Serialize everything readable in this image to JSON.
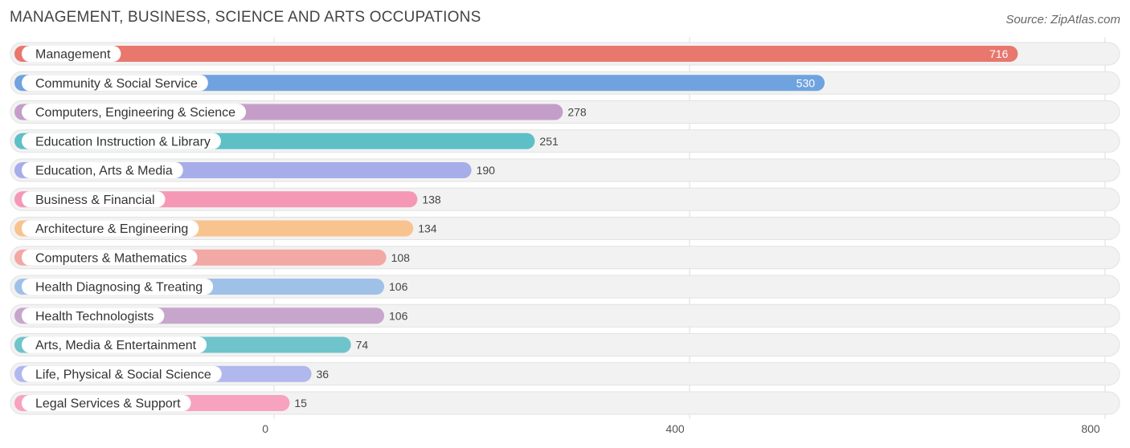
{
  "chart_data": {
    "type": "bar",
    "orientation": "horizontal",
    "title": "MANAGEMENT, BUSINESS, SCIENCE AND ARTS OCCUPATIONS",
    "source": "Source: ZipAtlas.com",
    "categories": [
      "Management",
      "Community & Social Service",
      "Computers, Engineering & Science",
      "Education Instruction & Library",
      "Education, Arts & Media",
      "Business & Financial",
      "Architecture & Engineering",
      "Computers & Mathematics",
      "Health Diagnosing & Treating",
      "Health Technologists",
      "Arts, Media & Entertainment",
      "Life, Physical & Social Science",
      "Legal Services & Support"
    ],
    "values": [
      716,
      530,
      278,
      251,
      190,
      138,
      134,
      108,
      106,
      106,
      74,
      36,
      15
    ],
    "value_labels": [
      "716",
      "530",
      "278",
      "251",
      "190",
      "138",
      "134",
      "108",
      "106",
      "106",
      "74",
      "36",
      "15"
    ],
    "colors": [
      "#e8776e",
      "#6fa3df",
      "#c49ec8",
      "#5fbfc7",
      "#a6ade8",
      "#f598b6",
      "#f9c38f",
      "#f2a8a5",
      "#9fc1e8",
      "#c7a6cc",
      "#6fc4cb",
      "#b0b8ee",
      "#f7a3bf"
    ],
    "xlim": [
      0,
      800
    ],
    "xticks": [
      0,
      400,
      800
    ],
    "xtick_labels": [
      "0",
      "400",
      "800"
    ],
    "grid": true,
    "legend": "none"
  }
}
